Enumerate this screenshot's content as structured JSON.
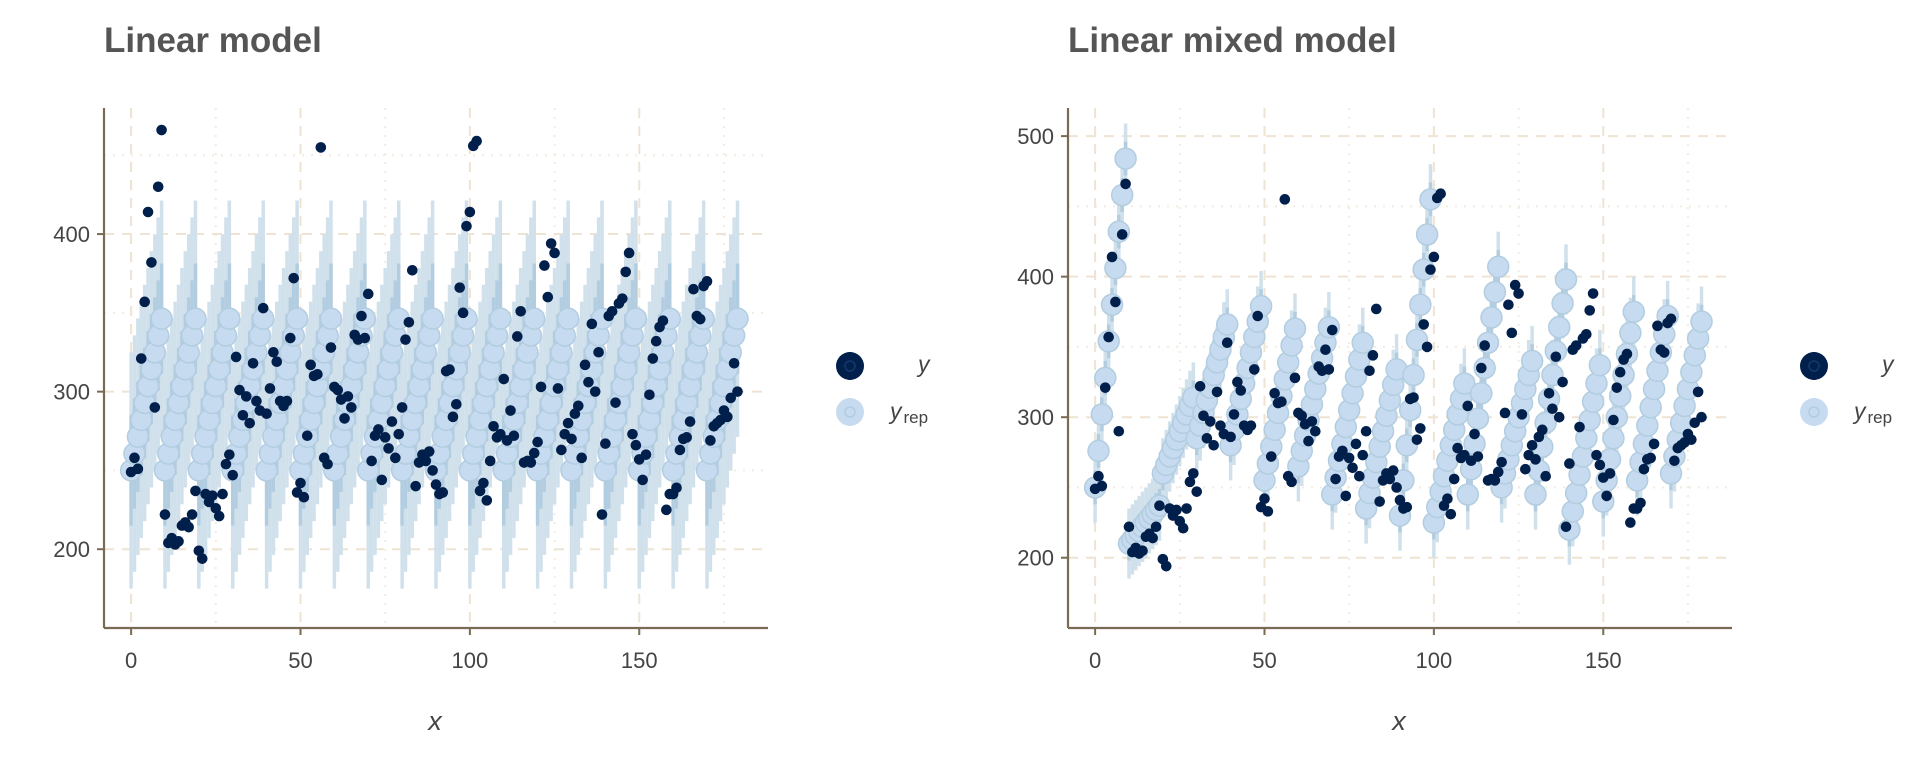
{
  "colors": {
    "y": "#011f4b",
    "yrep_point": "#c6dbef",
    "yrep_inner": "#b3cde0",
    "yrep_outer": "#d1e1ec",
    "axis": "#7a6a53",
    "grid": "#efe3d4"
  },
  "legend": {
    "y_label": "y",
    "yrep_main": "y",
    "yrep_sub": "rep"
  },
  "chart_data": [
    {
      "type": "scatter",
      "title": "Linear model",
      "xlabel": "x",
      "ylabel": "",
      "xlim": [
        -8,
        188
      ],
      "ylim": [
        150,
        480
      ],
      "x_ticks": [
        0,
        50,
        100,
        150
      ],
      "y_ticks": [
        200,
        300,
        400
      ],
      "grid": true,
      "legend_position": "right",
      "series": [
        {
          "name": "y",
          "x": [
            0,
            1,
            2,
            3,
            4,
            5,
            6,
            7,
            8,
            9,
            10,
            11,
            12,
            13,
            14,
            15,
            16,
            17,
            18,
            19,
            20,
            21,
            22,
            23,
            24,
            25,
            26,
            27,
            28,
            29,
            30,
            31,
            32,
            33,
            34,
            35,
            36,
            37,
            38,
            39,
            40,
            41,
            42,
            43,
            44,
            45,
            46,
            47,
            48,
            49,
            50,
            51,
            52,
            53,
            54,
            55,
            56,
            57,
            58,
            59,
            60,
            61,
            62,
            63,
            64,
            65,
            66,
            67,
            68,
            69,
            70,
            71,
            72,
            73,
            74,
            75,
            76,
            77,
            78,
            79,
            80,
            81,
            82,
            83,
            84,
            85,
            86,
            87,
            88,
            89,
            90,
            91,
            92,
            93,
            94,
            95,
            96,
            97,
            98,
            99,
            100,
            101,
            102,
            103,
            104,
            105,
            106,
            107,
            108,
            109,
            110,
            111,
            112,
            113,
            114,
            115,
            116,
            117,
            118,
            119,
            120,
            121,
            122,
            123,
            124,
            125,
            126,
            127,
            128,
            129,
            130,
            131,
            132,
            133,
            134,
            135,
            136,
            137,
            138,
            139,
            140,
            141,
            142,
            143,
            144,
            145,
            146,
            147,
            148,
            149,
            150,
            151,
            152,
            153,
            154,
            155,
            156,
            157,
            158,
            159,
            160,
            161,
            162,
            163,
            164,
            165,
            166,
            167,
            168,
            169,
            170,
            171,
            172,
            173,
            174,
            175,
            176,
            177,
            178,
            179
          ],
          "values": [
            249,
            258,
            251,
            321,
            357,
            414,
            382,
            290,
            430,
            466,
            222,
            204,
            207,
            203,
            205,
            215,
            217,
            214,
            222,
            237,
            199,
            194,
            235,
            230,
            234,
            226,
            221,
            235,
            254,
            260,
            247,
            322,
            301,
            285,
            297,
            280,
            318,
            294,
            288,
            353,
            286,
            302,
            325,
            319,
            294,
            291,
            294,
            334,
            372,
            236,
            242,
            233,
            272,
            317,
            310,
            311,
            455,
            258,
            254,
            328,
            303,
            301,
            295,
            283,
            297,
            290,
            336,
            333,
            348,
            334,
            362,
            256,
            272,
            276,
            244,
            271,
            264,
            281,
            258,
            273,
            290,
            333,
            344,
            377,
            240,
            255,
            260,
            256,
            262,
            250,
            241,
            235,
            236,
            313,
            314,
            284,
            292,
            366,
            350,
            405,
            414,
            456,
            459,
            237,
            242,
            231,
            256,
            278,
            271,
            273,
            308,
            269,
            288,
            272,
            335,
            351,
            255,
            256,
            255,
            261,
            268,
            303,
            380,
            360,
            394,
            388,
            302,
            263,
            273,
            280,
            270,
            286,
            291,
            258,
            317,
            306,
            343,
            300,
            325,
            222,
            267,
            348,
            351,
            293,
            356,
            359,
            376,
            388,
            273,
            266,
            257,
            244,
            260,
            298,
            321,
            332,
            341,
            345,
            225,
            235,
            235,
            239,
            263,
            270,
            271,
            281,
            365,
            348,
            346,
            367,
            370,
            269,
            278,
            280,
            282,
            288,
            284,
            296,
            318,
            300
          ]
        },
        {
          "name": "y_rep",
          "groups": 18,
          "group_size": 10,
          "group_start": 250,
          "slope_per_day": 10.7,
          "interval_inner_half": 35,
          "interval_outer_half": 75
        }
      ]
    },
    {
      "type": "scatter",
      "title": "Linear mixed model",
      "xlabel": "x",
      "ylabel": "",
      "xlim": [
        -8,
        188
      ],
      "ylim": [
        150,
        520
      ],
      "x_ticks": [
        0,
        50,
        100,
        150
      ],
      "y_ticks": [
        200,
        300,
        400,
        500
      ],
      "grid": true,
      "legend_position": "right",
      "series": [
        {
          "name": "y",
          "x": [
            0,
            1,
            2,
            3,
            4,
            5,
            6,
            7,
            8,
            9,
            10,
            11,
            12,
            13,
            14,
            15,
            16,
            17,
            18,
            19,
            20,
            21,
            22,
            23,
            24,
            25,
            26,
            27,
            28,
            29,
            30,
            31,
            32,
            33,
            34,
            35,
            36,
            37,
            38,
            39,
            40,
            41,
            42,
            43,
            44,
            45,
            46,
            47,
            48,
            49,
            50,
            51,
            52,
            53,
            54,
            55,
            56,
            57,
            58,
            59,
            60,
            61,
            62,
            63,
            64,
            65,
            66,
            67,
            68,
            69,
            70,
            71,
            72,
            73,
            74,
            75,
            76,
            77,
            78,
            79,
            80,
            81,
            82,
            83,
            84,
            85,
            86,
            87,
            88,
            89,
            90,
            91,
            92,
            93,
            94,
            95,
            96,
            97,
            98,
            99,
            100,
            101,
            102,
            103,
            104,
            105,
            106,
            107,
            108,
            109,
            110,
            111,
            112,
            113,
            114,
            115,
            116,
            117,
            118,
            119,
            120,
            121,
            122,
            123,
            124,
            125,
            126,
            127,
            128,
            129,
            130,
            131,
            132,
            133,
            134,
            135,
            136,
            137,
            138,
            139,
            140,
            141,
            142,
            143,
            144,
            145,
            146,
            147,
            148,
            149,
            150,
            151,
            152,
            153,
            154,
            155,
            156,
            157,
            158,
            159,
            160,
            161,
            162,
            163,
            164,
            165,
            166,
            167,
            168,
            169,
            170,
            171,
            172,
            173,
            174,
            175,
            176,
            177,
            178,
            179
          ],
          "values": [
            249,
            258,
            251,
            321,
            357,
            414,
            382,
            290,
            430,
            466,
            222,
            204,
            207,
            203,
            205,
            215,
            217,
            214,
            222,
            237,
            199,
            194,
            235,
            230,
            234,
            226,
            221,
            235,
            254,
            260,
            247,
            322,
            301,
            285,
            297,
            280,
            318,
            294,
            288,
            353,
            286,
            302,
            325,
            319,
            294,
            291,
            294,
            334,
            372,
            236,
            242,
            233,
            272,
            317,
            310,
            311,
            455,
            258,
            254,
            328,
            303,
            301,
            295,
            283,
            297,
            290,
            336,
            333,
            348,
            334,
            362,
            256,
            272,
            276,
            244,
            271,
            264,
            281,
            258,
            273,
            290,
            333,
            344,
            377,
            240,
            255,
            260,
            256,
            262,
            250,
            241,
            235,
            236,
            313,
            314,
            284,
            292,
            366,
            350,
            405,
            414,
            456,
            459,
            237,
            242,
            231,
            256,
            278,
            271,
            273,
            308,
            269,
            288,
            272,
            335,
            351,
            255,
            256,
            255,
            261,
            268,
            303,
            380,
            360,
            394,
            388,
            302,
            263,
            273,
            280,
            270,
            286,
            291,
            258,
            317,
            306,
            343,
            300,
            325,
            222,
            267,
            348,
            351,
            293,
            356,
            359,
            376,
            388,
            273,
            266,
            257,
            244,
            260,
            298,
            321,
            332,
            341,
            345,
            225,
            235,
            235,
            239,
            263,
            270,
            271,
            281,
            365,
            348,
            346,
            367,
            370,
            269,
            278,
            280,
            282,
            288,
            284,
            296,
            318,
            300
          ]
        },
        {
          "name": "y_rep",
          "groups": 18,
          "group_size": 10,
          "group_starts": [
            250,
            210,
            260,
            285,
            280,
            255,
            265,
            245,
            235,
            230,
            225,
            245,
            250,
            245,
            220,
            240,
            255,
            260
          ],
          "group_slopes": [
            26,
            3,
            6,
            9,
            11,
            12,
            11,
            12,
            11,
            25,
            11,
            18,
            10,
            17,
            13,
            15,
            13,
            12
          ],
          "interval_inner_half": 12,
          "interval_outer_half": 25
        }
      ]
    }
  ]
}
